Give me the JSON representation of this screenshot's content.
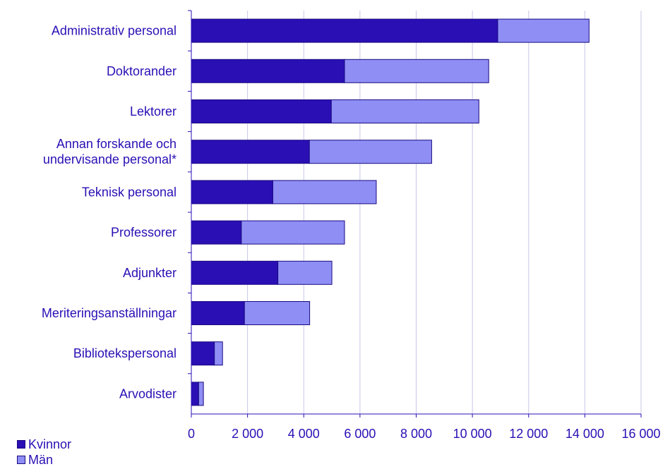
{
  "chart_data": {
    "type": "bar",
    "orientation": "horizontal",
    "stacked": true,
    "categories": [
      "Administrativ personal",
      "Doktorander",
      "Lektorer",
      "Annan forskande och undervisande personal*",
      "Teknisk personal",
      "Professorer",
      "Adjunkter",
      "Meriteringsanställningar",
      "Bibliotekspersonal",
      "Arvodister"
    ],
    "category_lines": [
      [
        "Administrativ personal"
      ],
      [
        "Doktorander"
      ],
      [
        "Lektorer"
      ],
      [
        "Annan forskande och",
        "undervisande personal*"
      ],
      [
        "Teknisk personal"
      ],
      [
        "Professorer"
      ],
      [
        "Adjunkter"
      ],
      [
        "Meriteringsanställningar"
      ],
      [
        "Bibliotekspersonal"
      ],
      [
        "Arvodister"
      ]
    ],
    "series": [
      {
        "name": "Kvinnor",
        "color": "#2a0fb4",
        "values": [
          10900,
          5450,
          4980,
          4200,
          2900,
          1780,
          3080,
          1890,
          820,
          260
        ]
      },
      {
        "name": "Män",
        "color": "#8e8ef5",
        "values": [
          3250,
          5130,
          5250,
          4350,
          3680,
          3670,
          1920,
          2320,
          290,
          170
        ]
      }
    ],
    "x_ticks": [
      0,
      2000,
      4000,
      6000,
      8000,
      10000,
      12000,
      14000,
      16000
    ],
    "x_tick_labels": [
      "0",
      "2 000",
      "4 000",
      "6 000",
      "8 000",
      "10 000",
      "12 000",
      "14 000",
      "16 000"
    ],
    "xlim": [
      0,
      16000
    ],
    "grid": true,
    "legend_position": "bottom-left",
    "colors": {
      "text": "#2a0fb4",
      "grid": "#c8c8e8",
      "axis": "#2a0fb4",
      "bar_border": "#1a0a80"
    }
  }
}
